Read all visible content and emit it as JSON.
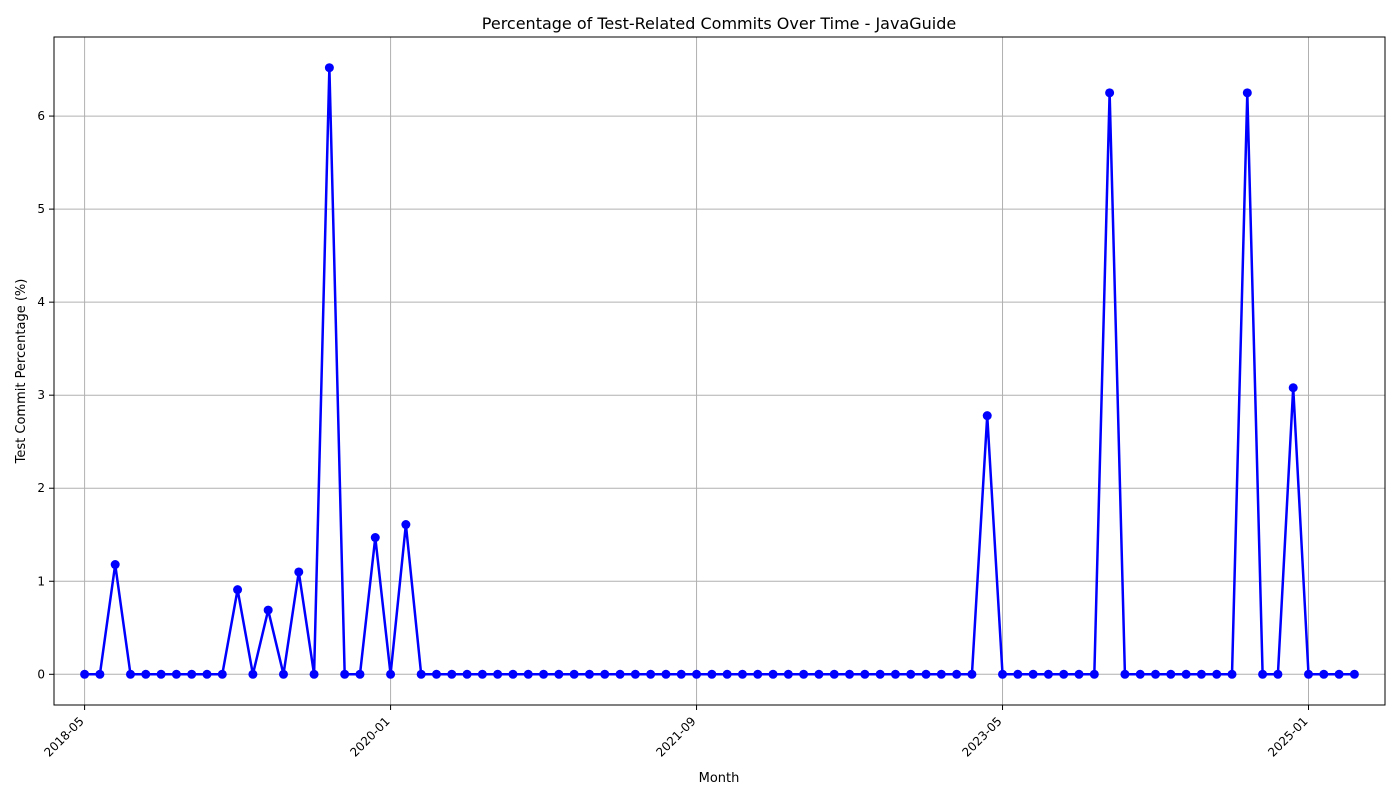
{
  "chart_data": {
    "type": "line",
    "title": "Percentage of Test-Related Commits Over Time - JavaGuide",
    "xlabel": "Month",
    "ylabel": "Test Commit Percentage (%)",
    "x_start": "2018-05",
    "x_ticks": [
      "2018-05",
      "2020-01",
      "2021-09",
      "2023-05",
      "2025-01"
    ],
    "y_ticks": [
      0,
      1,
      2,
      3,
      4,
      5,
      6
    ],
    "xlim": [
      "2018-03",
      "2025-06"
    ],
    "ylim": [
      -0.33,
      6.85
    ],
    "grid": true,
    "series": [
      {
        "color": "#0000ff",
        "marker": "circle",
        "values": [
          0,
          0,
          1.18,
          0,
          0,
          0,
          0,
          0,
          0,
          0,
          0.91,
          0,
          0.69,
          0,
          1.1,
          0,
          6.52,
          0,
          0,
          1.47,
          0,
          1.61,
          0,
          0,
          0,
          0,
          0,
          0,
          0,
          0,
          0,
          0,
          0,
          0,
          0,
          0,
          0,
          0,
          0,
          0,
          0,
          0,
          0,
          0,
          0,
          0,
          0,
          0,
          0,
          0,
          0,
          0,
          0,
          0,
          0,
          0,
          0,
          0,
          0,
          2.78,
          0,
          0,
          0,
          0,
          0,
          0,
          0,
          6.25,
          0,
          0,
          0,
          0,
          0,
          0,
          0,
          0,
          6.25,
          0,
          0,
          3.08,
          0,
          0,
          0,
          0
        ]
      }
    ]
  }
}
